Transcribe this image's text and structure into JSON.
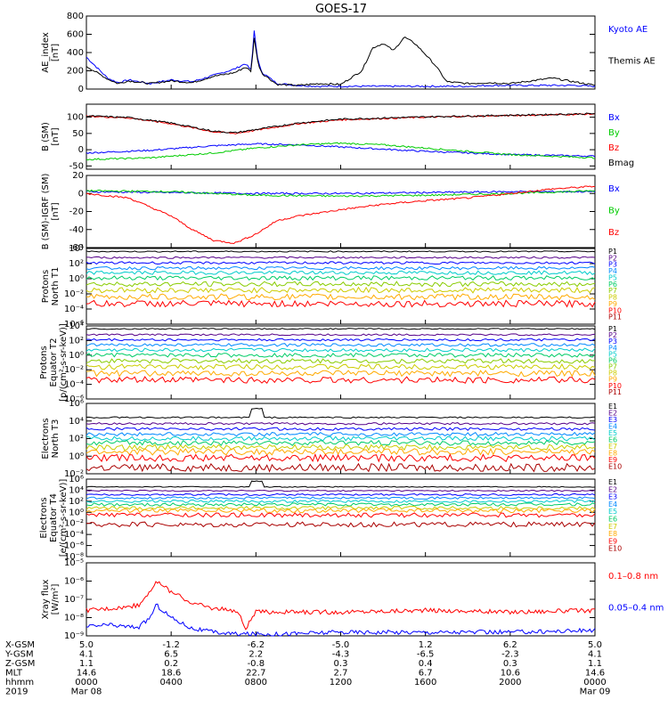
{
  "title": "GOES-17",
  "colors": {
    "axis": "#000000",
    "black": "#000000",
    "blue": "#0000ff",
    "green": "#00cc00",
    "red": "#ff0000",
    "darkred": "#aa0000"
  },
  "chart_data": [
    {
      "type": "line",
      "name": "ae-index",
      "ylabel": [
        "AE_index",
        "[nT]"
      ],
      "ylim": [
        0,
        800
      ],
      "yticks": [
        "800",
        "600",
        "400",
        "200",
        "0"
      ],
      "yvals": [
        800,
        600,
        400,
        200,
        0
      ],
      "legend": [
        "Kyoto AE",
        "Themis AE"
      ],
      "legend_colors": [
        "#0000ff",
        "#000000"
      ],
      "series": [
        {
          "name": "Kyoto AE",
          "color": "#0000ff",
          "x": [
            0,
            1,
            1.5,
            2,
            3,
            4,
            5,
            6,
            7,
            7.5,
            7.8,
            7.9,
            8.1,
            8.3,
            9,
            10,
            11,
            12,
            13,
            14,
            15,
            16,
            17,
            18,
            19,
            20,
            21,
            22,
            23,
            24
          ],
          "y": [
            350,
            120,
            70,
            100,
            60,
            100,
            80,
            150,
            220,
            280,
            200,
            680,
            300,
            180,
            60,
            40,
            30,
            30,
            30,
            30,
            30,
            30,
            30,
            30,
            40,
            40,
            40,
            40,
            40,
            30
          ]
        },
        {
          "name": "Themis AE",
          "color": "#000000",
          "x": [
            0,
            1,
            1.5,
            2,
            3,
            4,
            5,
            6,
            7,
            7.5,
            7.8,
            7.9,
            8.1,
            8.3,
            9,
            10,
            11,
            12,
            13,
            13.5,
            14,
            14.5,
            15,
            15.5,
            16,
            16.5,
            17,
            18,
            19,
            20,
            21,
            22,
            23,
            24
          ],
          "y": [
            250,
            110,
            60,
            90,
            60,
            90,
            70,
            140,
            180,
            240,
            190,
            600,
            280,
            170,
            50,
            40,
            60,
            50,
            200,
            450,
            500,
            420,
            570,
            500,
            380,
            250,
            80,
            60,
            70,
            60,
            90,
            120,
            80,
            40
          ]
        }
      ]
    },
    {
      "type": "line",
      "name": "b-sm",
      "ylabel": [
        "B (SM)",
        "[nT]"
      ],
      "ylim": [
        -60,
        140
      ],
      "yticks": [
        "100",
        "50",
        "0",
        "-50"
      ],
      "yvals": [
        100,
        50,
        0,
        -50
      ],
      "legend": [
        "Bx",
        "By",
        "Bz",
        "Bmag"
      ],
      "legend_colors": [
        "#0000ff",
        "#00cc00",
        "#ff0000",
        "#000000"
      ],
      "series": [
        {
          "name": "Bx",
          "color": "#0000ff",
          "x": [
            0,
            3,
            6,
            8,
            10,
            13,
            16,
            20,
            24
          ],
          "y": [
            -10,
            -2,
            12,
            18,
            15,
            5,
            -5,
            -15,
            -20
          ]
        },
        {
          "name": "By",
          "color": "#00cc00",
          "x": [
            0,
            3,
            6,
            8,
            10,
            12,
            14,
            17,
            20,
            24
          ],
          "y": [
            -30,
            -25,
            -10,
            5,
            15,
            20,
            15,
            0,
            -15,
            -25
          ]
        },
        {
          "name": "Bz",
          "color": "#ff0000",
          "x": [
            0,
            2,
            4,
            6,
            7,
            8,
            10,
            12,
            16,
            20,
            24
          ],
          "y": [
            103,
            98,
            80,
            55,
            50,
            60,
            80,
            92,
            100,
            105,
            110
          ]
        },
        {
          "name": "Bmag",
          "color": "#000000",
          "x": [
            0,
            2,
            4,
            6,
            7,
            8,
            10,
            12,
            16,
            20,
            24
          ],
          "y": [
            104,
            99,
            82,
            57,
            52,
            62,
            82,
            94,
            101,
            106,
            111
          ]
        }
      ]
    },
    {
      "type": "line",
      "name": "b-minus-igrf",
      "ylabel": [
        "B (SM)-IGRF (SM)",
        "[nT]"
      ],
      "ylim": [
        -60,
        20
      ],
      "yticks": [
        "20",
        "0",
        "-20",
        "-40",
        "-60"
      ],
      "yvals": [
        20,
        0,
        -20,
        -40,
        -60
      ],
      "legend": [
        "Bx",
        "By",
        "Bz"
      ],
      "legend_colors": [
        "#0000ff",
        "#00cc00",
        "#ff0000"
      ],
      "series": [
        {
          "name": "Bx",
          "color": "#0000ff",
          "x": [
            0,
            4,
            8,
            12,
            16,
            20,
            24
          ],
          "y": [
            2,
            1,
            0,
            0,
            1,
            2,
            2
          ]
        },
        {
          "name": "By",
          "color": "#00cc00",
          "x": [
            0,
            4,
            8,
            12,
            16,
            20,
            24
          ],
          "y": [
            3,
            2,
            -2,
            -3,
            -2,
            0,
            3
          ]
        },
        {
          "name": "Bz",
          "color": "#ff0000",
          "x": [
            0,
            2,
            3,
            4,
            5,
            6,
            7,
            8,
            9,
            10,
            12,
            14,
            16,
            18,
            20,
            22,
            24
          ],
          "y": [
            0,
            -5,
            -15,
            -25,
            -40,
            -52,
            -55,
            -45,
            -30,
            -25,
            -18,
            -12,
            -8,
            -5,
            0,
            5,
            8
          ]
        }
      ]
    },
    {
      "type": "line",
      "name": "protons-north",
      "ylabel": [
        "Protons",
        "North T1"
      ],
      "ylog": [
        -6,
        4
      ],
      "yticks": [
        "10⁴",
        "10²",
        "10⁰",
        "10⁻²",
        "10⁻⁴",
        "10⁻⁶"
      ],
      "yvals": [
        4,
        2,
        0,
        -2,
        -4,
        -6
      ],
      "legend": [
        "P1",
        "P2",
        "P3",
        "P4",
        "P5",
        "P6",
        "P7",
        "P8",
        "P9",
        "P10",
        "P11"
      ],
      "legend_colors": [
        "#000000",
        "#550088",
        "#0000ff",
        "#0088ff",
        "#00cccc",
        "#00cc66",
        "#88cc00",
        "#cccc00",
        "#ffaa00",
        "#ff0000",
        "#aa0000"
      ],
      "levels": [
        3.6,
        2.8,
        2.1,
        1.4,
        0.8,
        0.1,
        -0.7,
        -1.5,
        -2.4,
        -3.3
      ]
    },
    {
      "type": "line",
      "name": "protons-equator",
      "ylabel": [
        "Protons",
        "Equator T2",
        "[p/(cm²-s-sr-keV)]"
      ],
      "ylog": [
        -6,
        4
      ],
      "yticks": [
        "10⁴",
        "10²",
        "10⁰",
        "10⁻²",
        "10⁻⁴",
        "10⁻⁶"
      ],
      "yvals": [
        4,
        2,
        0,
        -2,
        -4,
        -6
      ],
      "legend": [
        "P1",
        "P2",
        "P3",
        "P4",
        "P5",
        "P6",
        "P7",
        "P8",
        "P9",
        "P10",
        "P11"
      ],
      "legend_colors": [
        "#000000",
        "#550088",
        "#0000ff",
        "#0088ff",
        "#00cccc",
        "#00cc66",
        "#88cc00",
        "#cccc00",
        "#ffaa00",
        "#ff0000",
        "#aa0000"
      ],
      "levels": [
        3.6,
        2.8,
        2.1,
        1.4,
        0.7,
        0.0,
        -0.8,
        -1.6,
        -2.5,
        -3.4
      ]
    },
    {
      "type": "line",
      "name": "electrons-north",
      "ylabel": [
        "Electrons",
        "North T3"
      ],
      "ylog": [
        -2,
        6
      ],
      "yticks": [
        "10⁶",
        "10⁴",
        "10²",
        "10⁰",
        "10⁻²"
      ],
      "yvals": [
        6,
        4,
        2,
        0,
        -2
      ],
      "legend": [
        "E1",
        "E2",
        "E3",
        "E4",
        "E5",
        "E6",
        "E7",
        "E8",
        "E9",
        "E10"
      ],
      "legend_colors": [
        "#000000",
        "#550088",
        "#0000ff",
        "#0088ff",
        "#00cccc",
        "#00cc66",
        "#cccc00",
        "#ffaa00",
        "#ff0000",
        "#aa0000"
      ],
      "levels": [
        4.4,
        3.7,
        3.1,
        2.5,
        2.0,
        1.5,
        1.0,
        0.5,
        -0.2,
        -1.3
      ]
    },
    {
      "type": "line",
      "name": "electrons-equator",
      "ylabel": [
        "Electrons",
        "Equator T4",
        "[e/(cm²-s-sr-keV)]"
      ],
      "ylog": [
        -8,
        6
      ],
      "yticks": [
        "10⁶",
        "10⁴",
        "10²",
        "10⁰",
        "10⁻²",
        "10⁻⁴",
        "10⁻⁶",
        "10⁻⁸"
      ],
      "yvals": [
        6,
        4,
        2,
        0,
        -2,
        -4,
        -6,
        -8
      ],
      "legend": [
        "E1",
        "E2",
        "E3",
        "E4",
        "E5",
        "E6",
        "E7",
        "E8",
        "E9",
        "E10"
      ],
      "legend_colors": [
        "#000000",
        "#550088",
        "#0000ff",
        "#0088ff",
        "#00cccc",
        "#00cc66",
        "#cccc00",
        "#ffaa00",
        "#ff0000",
        "#aa0000"
      ],
      "levels": [
        4.6,
        3.9,
        3.2,
        2.6,
        2.0,
        1.4,
        0.8,
        0.3,
        -0.5,
        -2.2
      ]
    },
    {
      "type": "line",
      "name": "xray-flux",
      "ylabel": [
        "Xray flux",
        "[W/m²]"
      ],
      "ylog": [
        -9,
        -5
      ],
      "yticks": [
        "10⁻⁵",
        "10⁻⁶",
        "10⁻⁷",
        "10⁻⁸",
        "10⁻⁹"
      ],
      "yvals": [
        -5,
        -6,
        -7,
        -8,
        -9
      ],
      "legend": [
        "0.1–0.8 nm",
        "0.05–0.4 nm"
      ],
      "legend_colors": [
        "#ff0000",
        "#0000ff"
      ],
      "series": [
        {
          "name": "0.1–0.8 nm",
          "color": "#ff0000",
          "x": [
            0,
            1,
            2,
            2.5,
            3,
            3.3,
            3.6,
            4,
            5,
            6,
            7,
            7.2,
            7.5,
            8,
            9,
            12,
            16,
            20,
            24
          ],
          "y": [
            -7.6,
            -7.5,
            -7.4,
            -7.3,
            -6.5,
            -6.1,
            -6.2,
            -6.6,
            -7.2,
            -7.5,
            -7.6,
            -7.8,
            -8.6,
            -7.7,
            -7.7,
            -7.7,
            -7.6,
            -7.7,
            -7.6
          ]
        },
        {
          "name": "0.05–0.4 nm",
          "color": "#0000ff",
          "x": [
            0,
            1,
            2,
            2.5,
            3,
            3.3,
            3.6,
            4,
            5,
            6,
            7,
            7.2,
            7.5,
            8,
            9,
            12,
            16,
            20,
            24
          ],
          "y": [
            -8.5,
            -8.4,
            -8.5,
            -8.5,
            -8.0,
            -7.3,
            -7.6,
            -8.0,
            -8.6,
            -8.8,
            -8.9,
            -8.9,
            -8.9,
            -8.9,
            -8.9,
            -8.8,
            -8.8,
            -8.8,
            -8.7
          ]
        }
      ]
    }
  ],
  "footer": {
    "row_labels": [
      "X-GSM",
      "Y-GSM",
      "Z-GSM",
      "MLT",
      "hhmm",
      "2019"
    ],
    "columns": [
      [
        "5.0",
        "4.1",
        "1.1",
        "14.6",
        "0000",
        "Mar 08"
      ],
      [
        "-1.2",
        "6.5",
        "0.2",
        "18.6",
        "0400",
        ""
      ],
      [
        "-6.2",
        "2.2",
        "-0.8",
        "22.7",
        "0800",
        ""
      ],
      [
        "-5.0",
        "-4.3",
        "0.3",
        "2.7",
        "1200",
        ""
      ],
      [
        "1.2",
        "-6.5",
        "0.4",
        "6.7",
        "1600",
        ""
      ],
      [
        "6.2",
        "-2.3",
        "0.3",
        "10.6",
        "2000",
        ""
      ],
      [
        "5.0",
        "4.1",
        "1.1",
        "14.6",
        "0000",
        "Mar 09"
      ]
    ]
  }
}
